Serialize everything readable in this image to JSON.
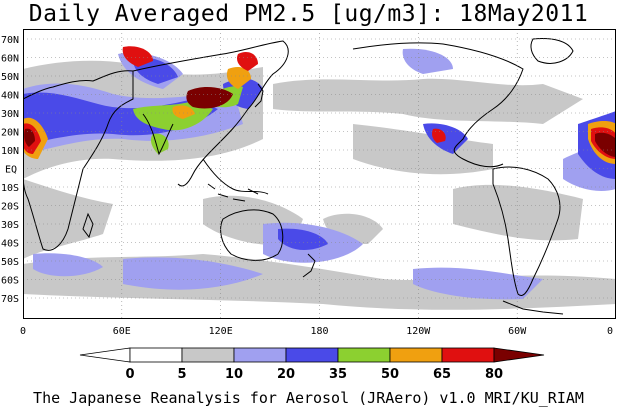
{
  "title": "Daily Averaged PM2.5 [ug/m3]: 18May2011",
  "footer": "The Japanese Reanalysis for Aerosol (JRAero) v1.0 MRI/KU_RIAM",
  "lat_labels": [
    "70N",
    "60N",
    "50N",
    "40N",
    "30N",
    "20N",
    "10N",
    "EQ",
    "10S",
    "20S",
    "30S",
    "40S",
    "50S",
    "60S",
    "70S"
  ],
  "lon_labels": [
    "0",
    "60E",
    "120E",
    "180",
    "120W",
    "60W",
    "0"
  ],
  "colorbar": {
    "levels": [
      "0",
      "5",
      "10",
      "20",
      "35",
      "50",
      "65",
      "80"
    ],
    "colors": [
      "#ffffff",
      "#c8c8c8",
      "#a0a0f0",
      "#4a4ae8",
      "#8cd030",
      "#f0a010",
      "#e01010",
      "#7a0000"
    ]
  }
}
